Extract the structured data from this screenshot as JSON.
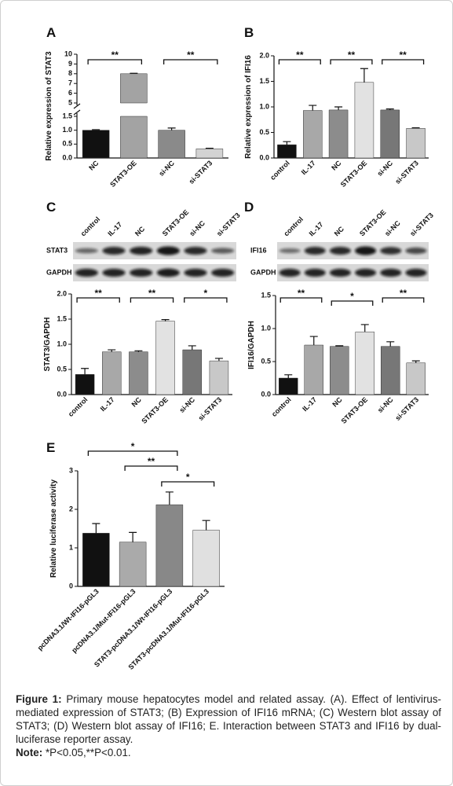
{
  "chart_data": [
    {
      "type": "bar",
      "panel": "A",
      "y_label": "Relative expression of STAT3",
      "categories": [
        "NC",
        "STAT3-OE",
        "si-NC",
        "si-STAT3"
      ],
      "values": [
        1.0,
        8.0,
        1.0,
        0.33
      ],
      "errors": [
        0.02,
        0.05,
        0.08,
        0.02
      ],
      "colors": [
        "#111111",
        "#a3a3a3",
        "#8a8a8a",
        "#d3d3d3"
      ],
      "ylim": [
        0,
        10
      ],
      "y_break": [
        1.5,
        5
      ],
      "yticks": [
        {
          "value": 0,
          "label": "0.0"
        },
        {
          "value": 0.5,
          "label": "0.5"
        },
        {
          "value": 1,
          "label": "1.0"
        },
        {
          "value": 1.5,
          "label": "1.5"
        },
        5,
        6,
        7,
        8,
        9,
        10
      ],
      "significance": [
        {
          "from": "NC",
          "to": "STAT3-OE",
          "label": "**"
        },
        {
          "from": "si-NC",
          "to": "si-STAT3",
          "label": "**"
        }
      ]
    },
    {
      "type": "bar",
      "panel": "B",
      "y_label": "Relative expression of IFI16",
      "categories": [
        "control",
        "IL-17",
        "NC",
        "STAT3-OE",
        "si-NC",
        "si-STAT3"
      ],
      "values": [
        0.26,
        0.93,
        0.94,
        1.48,
        0.94,
        0.58
      ],
      "errors": [
        0.06,
        0.1,
        0.06,
        0.27,
        0.02,
        0.01
      ],
      "colors": [
        "#111111",
        "#a8a8a8",
        "#8c8c8c",
        "#e2e2e2",
        "#777777",
        "#c8c8c8"
      ],
      "ylim": [
        0,
        2
      ],
      "yticks": [
        {
          "value": 0,
          "label": "0.0"
        },
        {
          "value": 0.5,
          "label": "0.5"
        },
        {
          "value": 1,
          "label": "1.0"
        },
        {
          "value": 1.5,
          "label": "1.5"
        },
        {
          "value": 2,
          "label": "2.0"
        }
      ],
      "significance": [
        {
          "from": "control",
          "to": "IL-17",
          "label": "**"
        },
        {
          "from": "NC",
          "to": "STAT3-OE",
          "label": "**"
        },
        {
          "from": "si-NC",
          "to": "si-STAT3",
          "label": "**"
        }
      ]
    },
    {
      "type": "bar",
      "panel": "C",
      "y_label": "STAT3/GAPDH",
      "blot_rows": [
        "STAT3",
        "GAPDH"
      ],
      "categories": [
        "control",
        "IL-17",
        "NC",
        "STAT3-OE",
        "si-NC",
        "si-STAT3"
      ],
      "values": [
        0.4,
        0.85,
        0.85,
        1.46,
        0.89,
        0.67
      ],
      "errors": [
        0.12,
        0.04,
        0.02,
        0.03,
        0.08,
        0.05
      ],
      "colors": [
        "#111111",
        "#a8a8a8",
        "#8c8c8c",
        "#e2e2e2",
        "#777777",
        "#c8c8c8"
      ],
      "ylim": [
        0,
        2
      ],
      "yticks": [
        {
          "value": 0,
          "label": "0.0"
        },
        {
          "value": 0.5,
          "label": "0.5"
        },
        {
          "value": 1,
          "label": "1.0"
        },
        {
          "value": 1.5,
          "label": "1.5"
        },
        {
          "value": 2,
          "label": "2.0"
        }
      ],
      "significance": [
        {
          "from": "control",
          "to": "IL-17",
          "label": "**"
        },
        {
          "from": "NC",
          "to": "STAT3-OE",
          "label": "**"
        },
        {
          "from": "si-NC",
          "to": "si-STAT3",
          "label": "*"
        }
      ]
    },
    {
      "type": "bar",
      "panel": "D",
      "y_label": "IFI16/GAPDH",
      "blot_rows": [
        "IFI16",
        "GAPDH"
      ],
      "categories": [
        "control",
        "IL-17",
        "NC",
        "STAT3-OE",
        "si-NC",
        "si-STAT3"
      ],
      "values": [
        0.25,
        0.75,
        0.73,
        0.95,
        0.73,
        0.48
      ],
      "errors": [
        0.05,
        0.13,
        0.01,
        0.11,
        0.07,
        0.03
      ],
      "colors": [
        "#111111",
        "#a8a8a8",
        "#8c8c8c",
        "#e2e2e2",
        "#777777",
        "#c8c8c8"
      ],
      "ylim": [
        0,
        1.5
      ],
      "yticks": [
        {
          "value": 0,
          "label": "0.0"
        },
        {
          "value": 0.5,
          "label": "0.5"
        },
        {
          "value": 1,
          "label": "1.0"
        },
        {
          "value": 1.5,
          "label": "1.5"
        }
      ],
      "significance": [
        {
          "from": "control",
          "to": "IL-17",
          "label": "**"
        },
        {
          "from": "NC",
          "to": "STAT3-OE",
          "label": "*"
        },
        {
          "from": "si-NC",
          "to": "si-STAT3",
          "label": "**"
        }
      ]
    },
    {
      "type": "bar",
      "panel": "E",
      "y_label": "Relative luciferase activity",
      "categories": [
        "pcDNA3.1/Wt-IFI16-pGL3",
        "pcDNA3.1/Mut-IFI16-pGL3",
        "STAT3-pcDNA3.1/Wt-IFI16-pGL3",
        "STAT3-pcDNA3.1/Mut-IFI16-pGL3"
      ],
      "values": [
        1.38,
        1.15,
        2.12,
        1.46
      ],
      "errors": [
        0.25,
        0.25,
        0.33,
        0.25
      ],
      "colors": [
        "#111111",
        "#aaaaaa",
        "#888888",
        "#e0e0e0"
      ],
      "ylim": [
        0,
        3
      ],
      "yticks": [
        0,
        1,
        2,
        3
      ],
      "significance": [
        {
          "from": "pcDNA3.1/Wt-IFI16-pGL3",
          "to": "STAT3-pcDNA3.1/Wt-IFI16-pGL3",
          "label": "*"
        },
        {
          "from": "pcDNA3.1/Mut-IFI16-pGL3",
          "to": "STAT3-pcDNA3.1/Wt-IFI16-pGL3",
          "label": "**"
        },
        {
          "from": "STAT3-pcDNA3.1/Wt-IFI16-pGL3",
          "to": "STAT3-pcDNA3.1/Mut-IFI16-pGL3",
          "label": "*"
        }
      ]
    }
  ],
  "caption": {
    "label": "Figure 1:",
    "text": " Primary mouse hepatocytes model and related assay. (A). Effect of lentivirus-mediated expression of STAT3; (B) Expression of IFI16 mRNA; (C) Western blot assay of STAT3; (D) Western blot assay of IFI16; E. Interaction between STAT3 and IFI16 by dual-luciferase reporter assay.",
    "note_label": "Note:",
    "note": " *P<0.05,**P<0.01."
  }
}
